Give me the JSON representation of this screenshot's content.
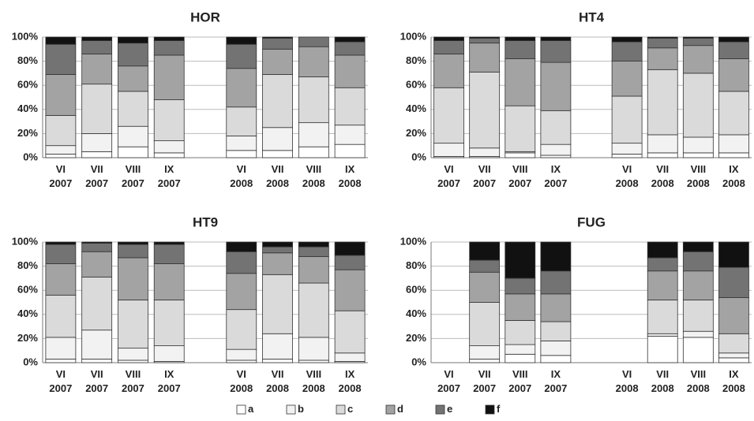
{
  "chart_data": [
    {
      "type": "bar",
      "stacked": true,
      "title": "HOR",
      "categories": [
        "VI 2007",
        "VII 2007",
        "VIII 2007",
        "IX 2007",
        null,
        "VI 2008",
        "VII 2008",
        "VIII 2008",
        "IX 2008"
      ],
      "series": [
        {
          "name": "a",
          "color": "#ffffff",
          "values": [
            3,
            5,
            9,
            4,
            null,
            6,
            6,
            9,
            11
          ]
        },
        {
          "name": "b",
          "color": "#f2f2f2",
          "values": [
            7,
            15,
            17,
            10,
            null,
            12,
            19,
            20,
            16
          ]
        },
        {
          "name": "c",
          "color": "#dadada",
          "values": [
            25,
            41,
            29,
            34,
            null,
            24,
            44,
            38,
            31
          ]
        },
        {
          "name": "d",
          "color": "#a3a3a3",
          "values": [
            34,
            25,
            21,
            37,
            null,
            32,
            21,
            25,
            27
          ]
        },
        {
          "name": "e",
          "color": "#737373",
          "values": [
            25,
            11,
            19,
            12,
            null,
            20,
            9,
            8,
            11
          ]
        },
        {
          "name": "f",
          "color": "#111111",
          "values": [
            6,
            3,
            5,
            3,
            null,
            6,
            1,
            0,
            4
          ]
        }
      ],
      "ylim": [
        0,
        100
      ],
      "yticks": [
        {
          "value": 0,
          "label": "0%"
        },
        {
          "value": 20,
          "label": "20%"
        },
        {
          "value": 40,
          "label": "40%"
        },
        {
          "value": 60,
          "label": "60%"
        },
        {
          "value": 80,
          "label": "80%"
        },
        {
          "value": 100,
          "label": "100%"
        }
      ],
      "grid": true
    },
    {
      "type": "bar",
      "stacked": true,
      "title": "HT4",
      "categories": [
        "VI 2007",
        "VII 2007",
        "VIII 2007",
        "IX 2007",
        null,
        "VI 2008",
        "VII 2008",
        "VIII 2008",
        "IX 2008"
      ],
      "series": [
        {
          "name": "a",
          "color": "#ffffff",
          "values": [
            1,
            1,
            4,
            2,
            null,
            3,
            4,
            4,
            4
          ]
        },
        {
          "name": "b",
          "color": "#f2f2f2",
          "values": [
            11,
            7,
            1,
            9,
            null,
            9,
            15,
            13,
            15
          ]
        },
        {
          "name": "c",
          "color": "#dadada",
          "values": [
            46,
            63,
            38,
            28,
            null,
            39,
            54,
            53,
            36
          ]
        },
        {
          "name": "d",
          "color": "#a3a3a3",
          "values": [
            28,
            24,
            39,
            40,
            null,
            29,
            18,
            23,
            27
          ]
        },
        {
          "name": "e",
          "color": "#737373",
          "values": [
            11,
            4,
            15,
            18,
            null,
            16,
            8,
            6,
            14
          ]
        },
        {
          "name": "f",
          "color": "#111111",
          "values": [
            3,
            1,
            3,
            3,
            null,
            4,
            1,
            1,
            4
          ]
        }
      ],
      "ylim": [
        0,
        100
      ],
      "yticks": [
        {
          "value": 0,
          "label": "0%"
        },
        {
          "value": 20,
          "label": "20%"
        },
        {
          "value": 40,
          "label": "40%"
        },
        {
          "value": 60,
          "label": "60%"
        },
        {
          "value": 80,
          "label": "80%"
        },
        {
          "value": 100,
          "label": "100%"
        }
      ],
      "grid": true
    },
    {
      "type": "bar",
      "stacked": true,
      "title": "HT9",
      "categories": [
        "VI 2007",
        "VII 2007",
        "VIII 2007",
        "IX 2007",
        null,
        "VI 2008",
        "VII 2008",
        "VIII 2008",
        "IX 2008"
      ],
      "series": [
        {
          "name": "a",
          "color": "#ffffff",
          "values": [
            3,
            3,
            2,
            1,
            null,
            2,
            3,
            2,
            1
          ]
        },
        {
          "name": "b",
          "color": "#f2f2f2",
          "values": [
            18,
            24,
            10,
            13,
            null,
            9,
            21,
            19,
            7
          ]
        },
        {
          "name": "c",
          "color": "#dadada",
          "values": [
            35,
            44,
            40,
            38,
            null,
            33,
            49,
            45,
            35
          ]
        },
        {
          "name": "d",
          "color": "#a3a3a3",
          "values": [
            26,
            21,
            35,
            30,
            null,
            30,
            18,
            22,
            34
          ]
        },
        {
          "name": "e",
          "color": "#737373",
          "values": [
            16,
            7,
            11,
            16,
            null,
            18,
            5,
            8,
            12
          ]
        },
        {
          "name": "f",
          "color": "#111111",
          "values": [
            2,
            1,
            2,
            2,
            null,
            8,
            4,
            4,
            11
          ]
        }
      ],
      "ylim": [
        0,
        100
      ],
      "yticks": [
        {
          "value": 0,
          "label": "0%"
        },
        {
          "value": 20,
          "label": "20%"
        },
        {
          "value": 40,
          "label": "40%"
        },
        {
          "value": 60,
          "label": "60%"
        },
        {
          "value": 80,
          "label": "80%"
        },
        {
          "value": 100,
          "label": "100%"
        }
      ],
      "grid": true
    },
    {
      "type": "bar",
      "stacked": true,
      "title": "FUG",
      "categories": [
        "VI 2007",
        "VII 2007",
        "VIII 2007",
        "IX 2007",
        null,
        "VI 2008",
        "VII 2008",
        "VIII 2008",
        "IX 2008"
      ],
      "series": [
        {
          "name": "a",
          "color": "#ffffff",
          "values": [
            null,
            3,
            7,
            6,
            null,
            null,
            22,
            21,
            4
          ]
        },
        {
          "name": "b",
          "color": "#f2f2f2",
          "values": [
            null,
            11,
            8,
            12,
            null,
            null,
            2,
            5,
            4
          ]
        },
        {
          "name": "c",
          "color": "#dadada",
          "values": [
            null,
            36,
            20,
            16,
            null,
            null,
            28,
            26,
            16
          ]
        },
        {
          "name": "d",
          "color": "#a3a3a3",
          "values": [
            null,
            25,
            22,
            23,
            null,
            null,
            24,
            24,
            30
          ]
        },
        {
          "name": "e",
          "color": "#737373",
          "values": [
            null,
            10,
            13,
            19,
            null,
            null,
            11,
            16,
            25
          ]
        },
        {
          "name": "f",
          "color": "#111111",
          "values": [
            null,
            15,
            30,
            24,
            null,
            null,
            13,
            8,
            21
          ]
        }
      ],
      "ylim": [
        0,
        100
      ],
      "yticks": [
        {
          "value": 0,
          "label": "0%"
        },
        {
          "value": 20,
          "label": "20%"
        },
        {
          "value": 40,
          "label": "40%"
        },
        {
          "value": 60,
          "label": "60%"
        },
        {
          "value": 80,
          "label": "80%"
        },
        {
          "value": 100,
          "label": "100%"
        }
      ],
      "grid": true
    }
  ]
}
